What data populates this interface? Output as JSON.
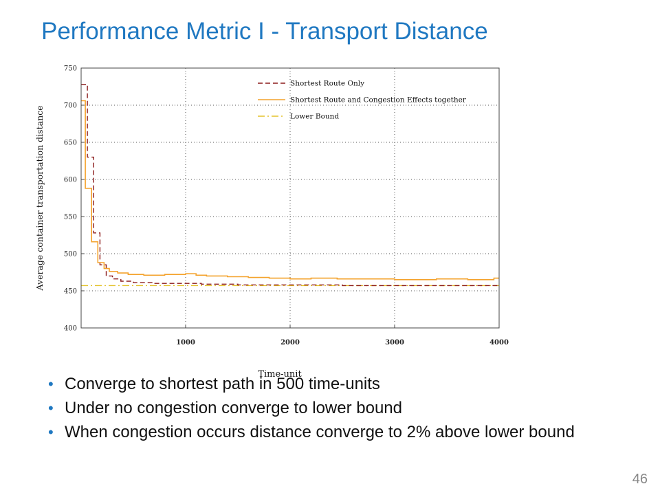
{
  "slide": {
    "title": "Performance Metric I - Transport Distance",
    "bullets": [
      "Converge to shortest path in 500 time-units",
      "Under no congestion converge to lower bound",
      "When congestion occurs distance converge to 2% above lower bound"
    ],
    "page_number": "46",
    "colors": {
      "title": "#1f78c1",
      "bullet": "#1f78c1"
    }
  },
  "chart_data": {
    "type": "line",
    "xlabel": "Time-unit",
    "ylabel": "Average container transportation distance",
    "xlim": [
      0,
      4000
    ],
    "ylim": [
      400,
      750
    ],
    "xticks": [
      1000,
      2000,
      3000,
      4000
    ],
    "yticks": [
      400,
      450,
      500,
      550,
      600,
      650,
      700,
      750
    ],
    "grid": true,
    "legend_position": "top-right",
    "series": [
      {
        "name": "Shortest Route Only",
        "style": "dashed",
        "color": "#8b1a1a",
        "points": [
          [
            0,
            728
          ],
          [
            60,
            728
          ],
          [
            60,
            630
          ],
          [
            120,
            630
          ],
          [
            120,
            528
          ],
          [
            180,
            528
          ],
          [
            180,
            485
          ],
          [
            240,
            485
          ],
          [
            240,
            470
          ],
          [
            300,
            470
          ],
          [
            300,
            466
          ],
          [
            380,
            466
          ],
          [
            380,
            463
          ],
          [
            500,
            463
          ],
          [
            500,
            461
          ],
          [
            700,
            461
          ],
          [
            700,
            460
          ],
          [
            1150,
            460
          ],
          [
            1150,
            459
          ],
          [
            1500,
            459
          ],
          [
            1500,
            458
          ],
          [
            2500,
            458
          ],
          [
            2500,
            457
          ],
          [
            4000,
            457
          ]
        ]
      },
      {
        "name": "Shortest Route and Congestion Effects together",
        "style": "solid",
        "color": "#f4a22c",
        "points": [
          [
            0,
            706
          ],
          [
            40,
            706
          ],
          [
            40,
            588
          ],
          [
            100,
            588
          ],
          [
            100,
            516
          ],
          [
            160,
            516
          ],
          [
            160,
            488
          ],
          [
            220,
            488
          ],
          [
            220,
            480
          ],
          [
            270,
            480
          ],
          [
            270,
            476
          ],
          [
            350,
            476
          ],
          [
            350,
            474
          ],
          [
            450,
            474
          ],
          [
            450,
            472
          ],
          [
            600,
            472
          ],
          [
            600,
            471
          ],
          [
            800,
            471
          ],
          [
            800,
            472
          ],
          [
            1000,
            472
          ],
          [
            1000,
            473
          ],
          [
            1100,
            473
          ],
          [
            1100,
            471
          ],
          [
            1200,
            471
          ],
          [
            1200,
            470
          ],
          [
            1400,
            470
          ],
          [
            1400,
            469
          ],
          [
            1600,
            469
          ],
          [
            1600,
            468
          ],
          [
            1800,
            468
          ],
          [
            1800,
            467
          ],
          [
            2000,
            467
          ],
          [
            2000,
            466
          ],
          [
            2200,
            466
          ],
          [
            2200,
            467
          ],
          [
            2450,
            467
          ],
          [
            2450,
            466
          ],
          [
            3000,
            466
          ],
          [
            3000,
            465
          ],
          [
            3400,
            465
          ],
          [
            3400,
            466
          ],
          [
            3700,
            466
          ],
          [
            3700,
            465
          ],
          [
            3950,
            465
          ],
          [
            3950,
            467
          ],
          [
            4000,
            467
          ]
        ]
      },
      {
        "name": "Lower Bound",
        "style": "dash-dot",
        "color": "#e3c228",
        "points": [
          [
            0,
            457
          ],
          [
            4000,
            457
          ]
        ]
      }
    ]
  }
}
